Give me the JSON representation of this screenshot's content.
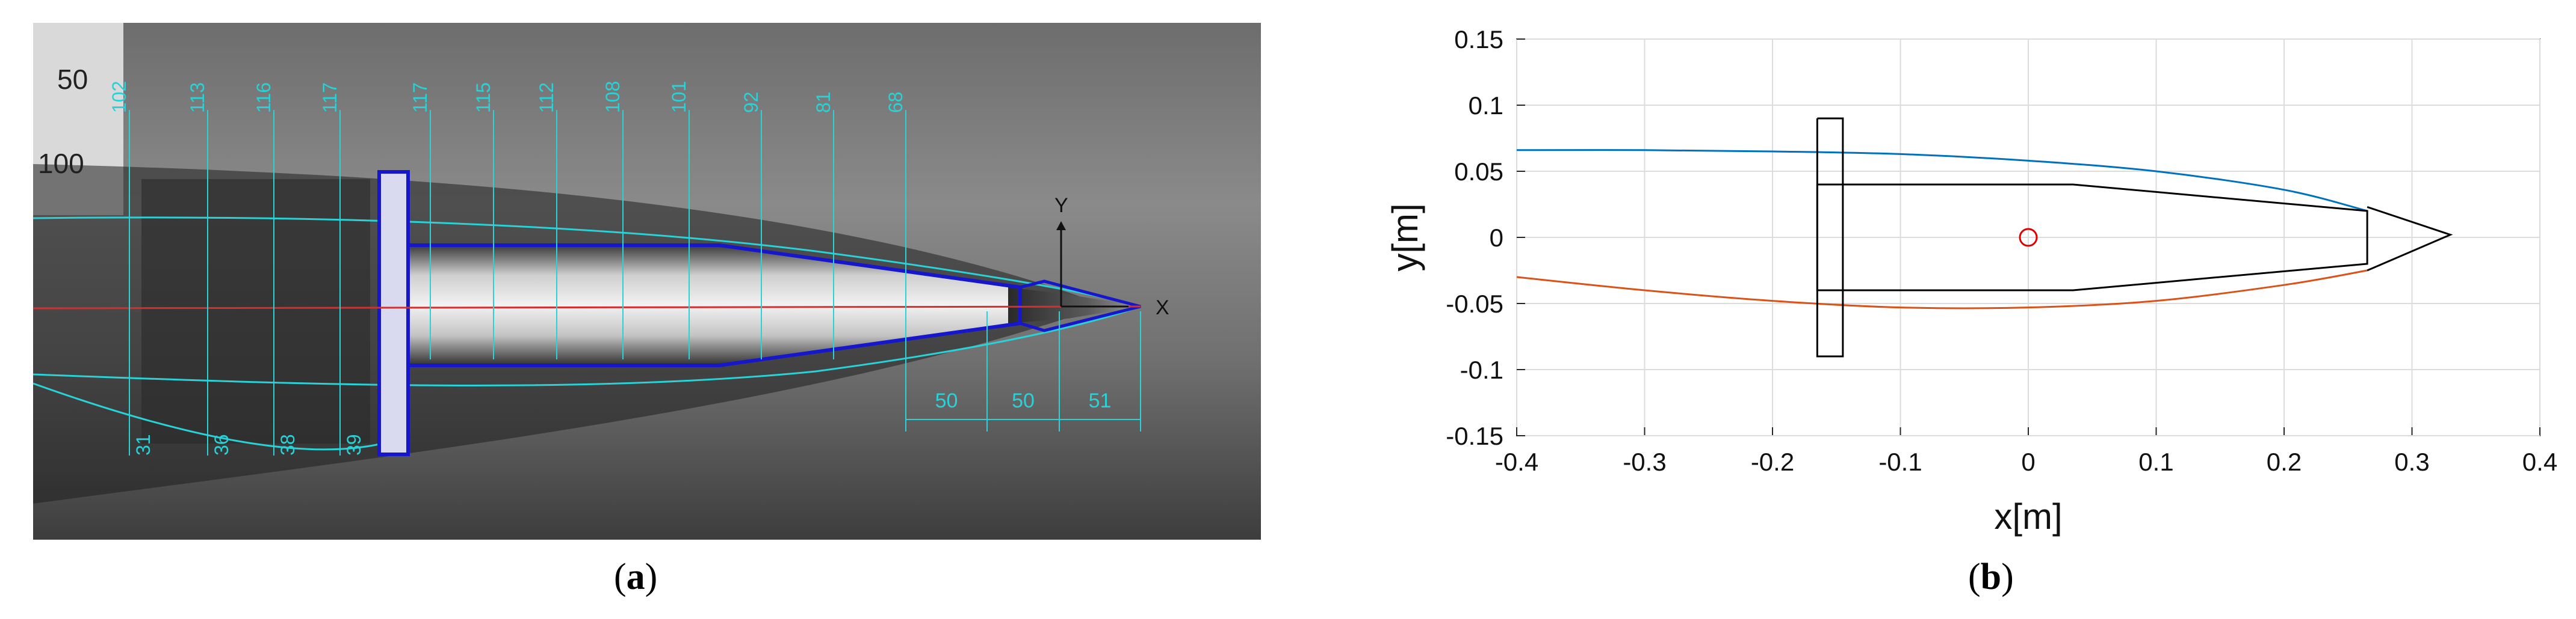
{
  "photo": {
    "ruler_labels": [
      "50",
      "100"
    ],
    "upper_dims": [
      "102",
      "113",
      "116",
      "117",
      "117",
      "115",
      "112",
      "108",
      "101",
      "92",
      "81",
      "68"
    ],
    "lower_dims": [
      "31",
      "36",
      "38",
      "39"
    ],
    "length_dims": [
      "50",
      "50",
      "51"
    ],
    "axis_labels": {
      "y": "Y",
      "x": "X"
    },
    "colors": {
      "annotation": "#2ad1d6",
      "outline": "#1616cc",
      "axis_line": "#d23030"
    }
  },
  "sublabels": {
    "a_letter": "a",
    "b_letter": "b"
  },
  "chart_data": {
    "type": "line",
    "xlabel": "x[m]",
    "ylabel": "y[m]",
    "xlim": [
      -0.4,
      0.4
    ],
    "ylim": [
      -0.15,
      0.15
    ],
    "xticks": [
      "-0.4",
      "-0.3",
      "-0.2",
      "-0.1",
      "0",
      "0.1",
      "0.2",
      "0.3",
      "0.4"
    ],
    "yticks": [
      "0.15",
      "0.1",
      "0.05",
      "0",
      "-0.05",
      "-0.1",
      "-0.15"
    ],
    "xtick_values": [
      -0.4,
      -0.3,
      -0.2,
      -0.1,
      0,
      0.1,
      0.2,
      0.3,
      0.4
    ],
    "ytick_values": [
      0.15,
      0.1,
      0.05,
      0,
      -0.05,
      -0.1,
      -0.15
    ],
    "grid": true,
    "series": [
      {
        "color": "#0072bd",
        "x": [
          -0.4,
          -0.3,
          -0.2,
          -0.1,
          0,
          0.1,
          0.2,
          0.265
        ],
        "y": [
          0.066,
          0.066,
          0.065,
          0.063,
          0.058,
          0.05,
          0.036,
          0.02
        ]
      },
      {
        "color": "#d95319",
        "x": [
          -0.4,
          -0.3,
          -0.2,
          -0.1,
          0,
          0.1,
          0.2,
          0.265
        ],
        "y": [
          -0.03,
          -0.04,
          -0.048,
          -0.053,
          -0.053,
          -0.048,
          -0.036,
          -0.025
        ]
      }
    ],
    "outline": {
      "color": "#000000",
      "body": {
        "x": [
          -0.165,
          0.035,
          0.265,
          0.265,
          0.035,
          -0.165,
          -0.165
        ],
        "y": [
          0.04,
          0.04,
          0.02,
          -0.02,
          -0.04,
          -0.04,
          0.04
        ]
      },
      "cavitator": {
        "x": [
          0.265,
          0.33,
          0.265
        ],
        "y": [
          0.023,
          0.002,
          -0.025
        ]
      },
      "fin": {
        "x": [
          -0.165,
          -0.145,
          -0.145,
          -0.165,
          -0.165
        ],
        "y": [
          0.09,
          0.09,
          -0.09,
          -0.09,
          0.09
        ]
      }
    },
    "marker": {
      "x": 0,
      "y": 0,
      "color": "#e00000"
    }
  }
}
